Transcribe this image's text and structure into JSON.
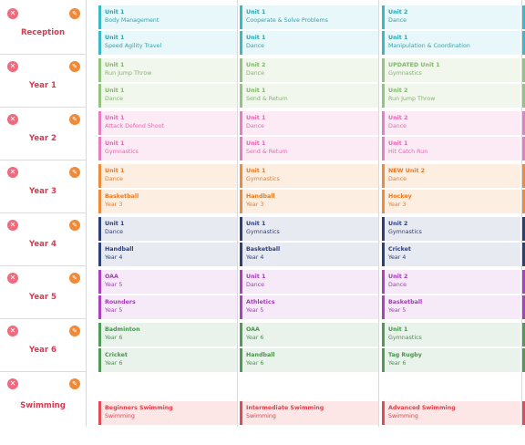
{
  "rows": [
    {
      "label": "Reception",
      "theme": {
        "accent": "#3bb8c6",
        "bg": "#e8f7f9",
        "text": "#2fa3b1"
      },
      "columns": [
        [
          {
            "title": "Unit 1",
            "sub": "Body Management"
          },
          {
            "title": "Unit 1",
            "sub": "Speed Agility Travel"
          }
        ],
        [
          {
            "title": "Unit 1",
            "sub": "Cooperate & Solve Problems"
          },
          {
            "title": "Unit 1",
            "sub": "Dance"
          }
        ],
        [
          {
            "title": "Unit 2",
            "sub": "Dance"
          },
          {
            "title": "Unit 1",
            "sub": "Manipulation & Coordination"
          }
        ]
      ]
    },
    {
      "label": "Year 1",
      "theme": {
        "accent": "#93c47d",
        "bg": "#f1f7ec",
        "text": "#83b56c"
      },
      "columns": [
        [
          {
            "title": "Unit 1",
            "sub": "Run Jump Throw"
          },
          {
            "title": "Unit 1",
            "sub": "Dance"
          }
        ],
        [
          {
            "title": "Unit 2",
            "sub": "Dance"
          },
          {
            "title": "Unit 1",
            "sub": "Send & Return"
          }
        ],
        [
          {
            "title": "UPDATED Unit 1",
            "sub": "Gymnastics"
          },
          {
            "title": "Unit 2",
            "sub": "Run Jump Throw"
          }
        ]
      ]
    },
    {
      "label": "Year 2",
      "theme": {
        "accent": "#ea7dc0",
        "bg": "#fcebf5",
        "text": "#e06aaf"
      },
      "columns": [
        [
          {
            "title": "Unit 1",
            "sub": "Attack Defend Shoot"
          },
          {
            "title": "Unit 1",
            "sub": "Gymnastics"
          }
        ],
        [
          {
            "title": "Unit 1",
            "sub": "Dance"
          },
          {
            "title": "Unit 1",
            "sub": "Send & Return"
          }
        ],
        [
          {
            "title": "Unit 2",
            "sub": "Dance"
          },
          {
            "title": "Unit 1",
            "sub": "Hit Catch Run"
          }
        ]
      ]
    },
    {
      "label": "Year 3",
      "theme": {
        "accent": "#ef8a3a",
        "bg": "#fdeee2",
        "text": "#e47b28"
      },
      "columns": [
        [
          {
            "title": "Unit 1",
            "sub": "Dance"
          },
          {
            "title": "Basketball",
            "sub": "Year 3"
          }
        ],
        [
          {
            "title": "Unit 1",
            "sub": "Gymnastics"
          },
          {
            "title": "Handball",
            "sub": "Year 3"
          }
        ],
        [
          {
            "title": "NEW Unit 2",
            "sub": "Dance"
          },
          {
            "title": "Hockey",
            "sub": "Year 3"
          }
        ]
      ]
    },
    {
      "label": "Year 4",
      "theme": {
        "accent": "#2e3e77",
        "bg": "#e8eaf1",
        "text": "#2e3e77"
      },
      "columns": [
        [
          {
            "title": "Unit 1",
            "sub": "Dance"
          },
          {
            "title": "Handball",
            "sub": "Year 4"
          }
        ],
        [
          {
            "title": "Unit 1",
            "sub": "Gymnastics"
          },
          {
            "title": "Basketball",
            "sub": "Year 4"
          }
        ],
        [
          {
            "title": "Unit 2",
            "sub": "Gymnastics"
          },
          {
            "title": "Cricket",
            "sub": "Year 4"
          }
        ]
      ]
    },
    {
      "label": "Year 5",
      "theme": {
        "accent": "#ad3fc1",
        "bg": "#f6e9f8",
        "text": "#a33bb7"
      },
      "columns": [
        [
          {
            "title": "OAA",
            "sub": "Year 5"
          },
          {
            "title": "Rounders",
            "sub": "Year 5"
          }
        ],
        [
          {
            "title": "Unit 1",
            "sub": "Dance"
          },
          {
            "title": "Athletics",
            "sub": "Year 5"
          }
        ],
        [
          {
            "title": "Unit 2",
            "sub": "Dance"
          },
          {
            "title": "Basketball",
            "sub": "Year 5"
          }
        ]
      ]
    },
    {
      "label": "Year 6",
      "theme": {
        "accent": "#4f9a55",
        "bg": "#eaf3eb",
        "text": "#4b9150"
      },
      "columns": [
        [
          {
            "title": "Badminton",
            "sub": "Year 6"
          },
          {
            "title": "Cricket",
            "sub": "Year 6"
          }
        ],
        [
          {
            "title": "OAA",
            "sub": "Year 6"
          },
          {
            "title": "Handball",
            "sub": "Year 6"
          }
        ],
        [
          {
            "title": "Unit 1",
            "sub": "Gymnastics"
          },
          {
            "title": "Tag Rugby",
            "sub": "Year 6"
          }
        ]
      ]
    },
    {
      "label": "Swimming",
      "theme": {
        "accent": "#e24b55",
        "bg": "#fde6e6",
        "text": "#dc414b"
      },
      "columns": [
        [
          null,
          {
            "title": "Beginners Swimming",
            "sub": "Swimming"
          }
        ],
        [
          null,
          {
            "title": "Intermediate Swimming",
            "sub": "Swimming"
          }
        ],
        [
          null,
          {
            "title": "Advanced Swimming",
            "sub": "Swimming"
          }
        ]
      ]
    }
  ],
  "icons": {
    "remove": "close-icon",
    "edit": "edit-icon"
  }
}
